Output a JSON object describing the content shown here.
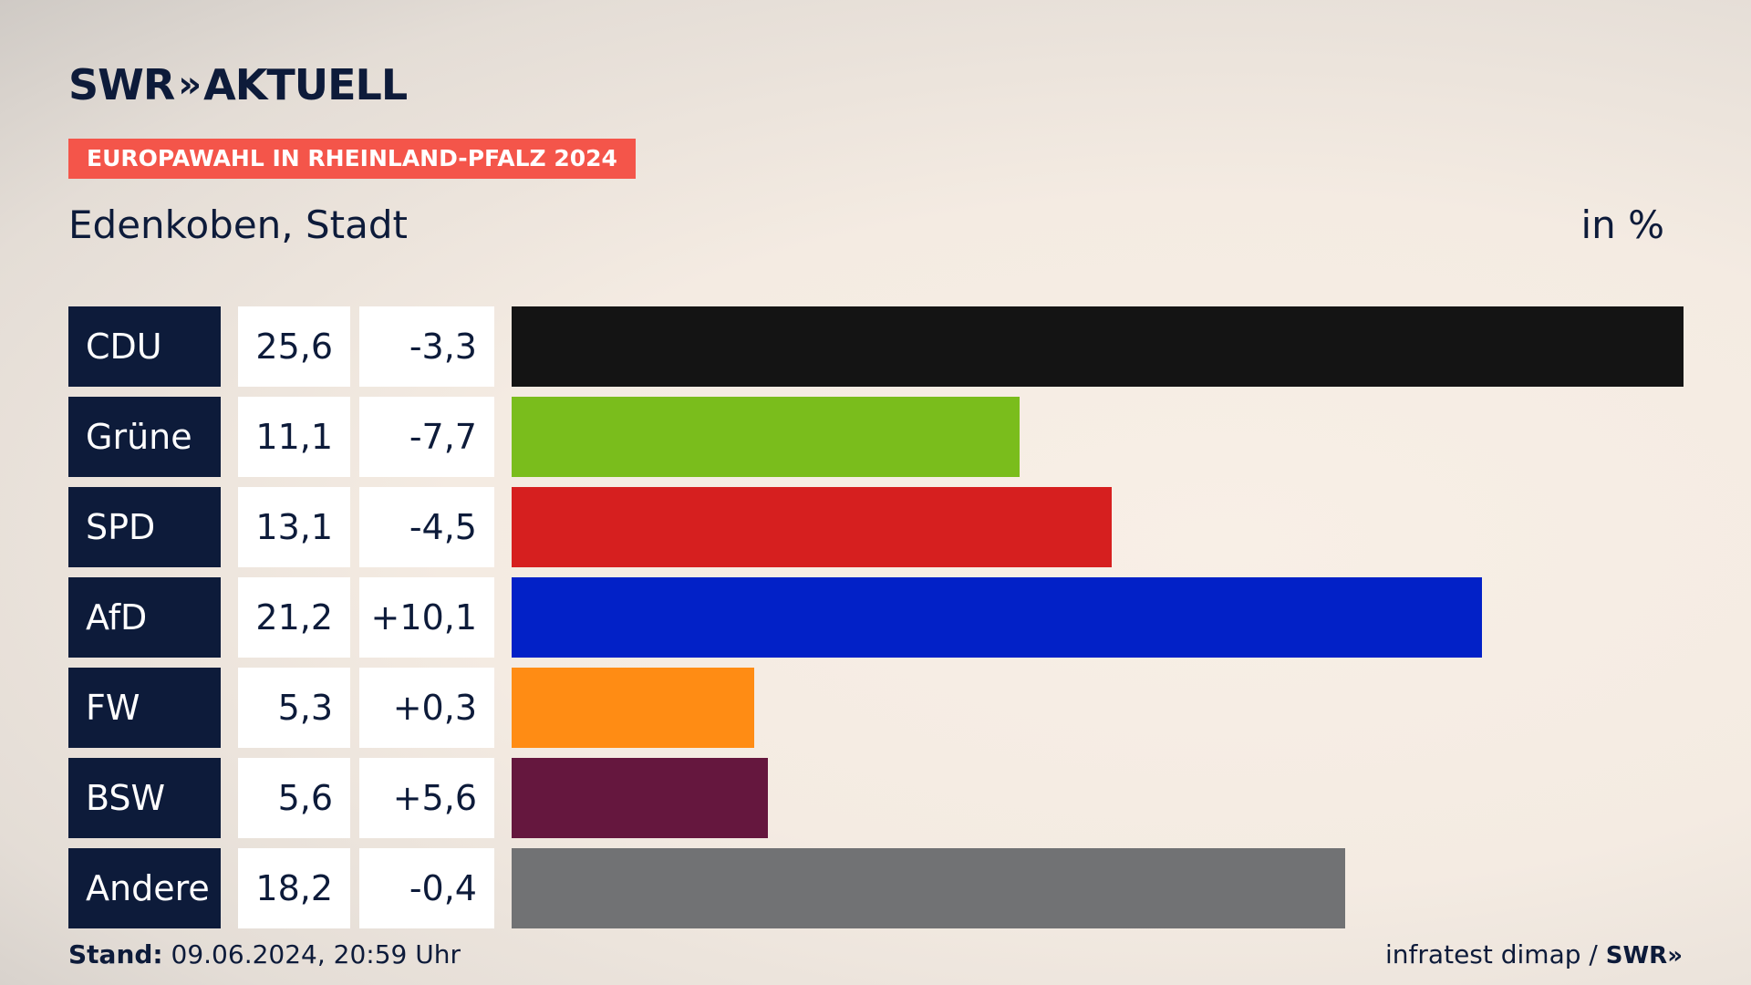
{
  "header": {
    "logo_swr": "SWR",
    "logo_chevrons": "»",
    "logo_aktuell": "AKTUELL",
    "topic": "EUROPAWAHL IN RHEINLAND-PFALZ 2024",
    "subtitle": "Edenkoben, Stadt",
    "unit": "in %"
  },
  "footer": {
    "stand_label": "Stand:",
    "stand_value": "09.06.2024, 20:59 Uhr",
    "source": "infratest dimap /",
    "source_logo": "SWR»"
  },
  "chart_data": {
    "type": "bar",
    "orientation": "horizontal",
    "categories": [
      "CDU",
      "Grüne",
      "SPD",
      "AfD",
      "FW",
      "BSW",
      "Andere"
    ],
    "values": [
      25.6,
      11.1,
      13.1,
      21.2,
      5.3,
      5.6,
      18.2
    ],
    "value_labels": [
      "25,6",
      "11,1",
      "13,1",
      "21,2",
      "5,3",
      "5,6",
      "18,2"
    ],
    "diff_labels": [
      "-3,3",
      "-7,7",
      "-4,5",
      "+10,1",
      "+0,3",
      "+5,6",
      "-0,4"
    ],
    "diffs": [
      -3.3,
      -7.7,
      -4.5,
      10.1,
      0.3,
      5.6,
      -0.4
    ],
    "colors": [
      "#141414",
      "#7abd1c",
      "#d61f1f",
      "#0221c7",
      "#ff8c14",
      "#65173e",
      "#717274"
    ],
    "xlim": [
      0,
      25.6
    ]
  }
}
